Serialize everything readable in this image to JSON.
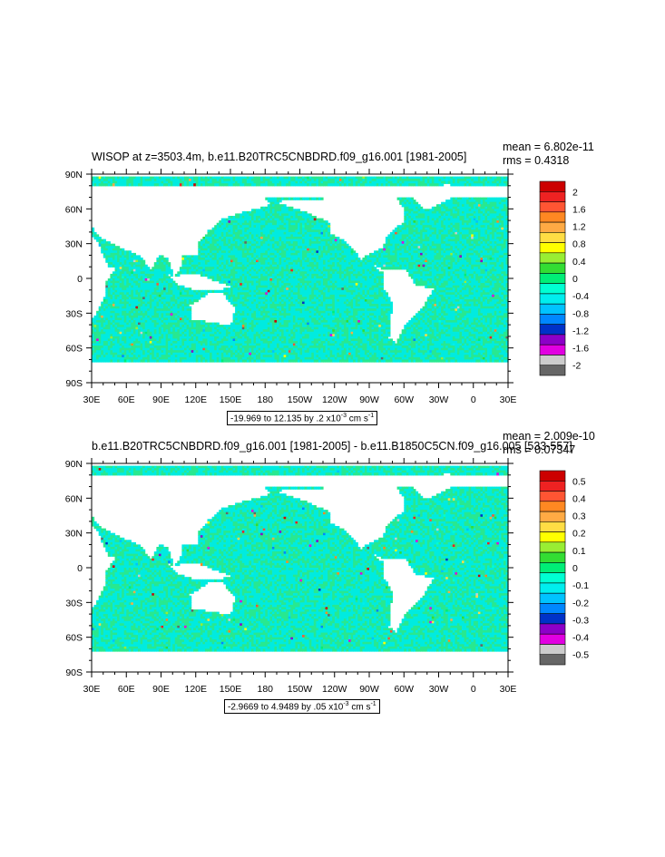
{
  "panels": [
    {
      "title": "WISOP at z=3503.4m, b.e11.B20TRC5CNBDRD.f09_g16.001 [1981-2005]",
      "mean": "mean = 6.802e-11",
      "rms": "rms = 0.4318",
      "range_text": "-19.969 to 12.135 by .2 x10",
      "range_exp": "-3",
      "units": "cm s",
      "units_exp": "-1"
    },
    {
      "title": "b.e11.B20TRC5CNBDRD.f09_g16.001 [1981-2005] - b.e11.B1850C5CN.f09_g16.005 [533-557]",
      "mean": "mean = 2.009e-10",
      "rms": "rms = 0.07347",
      "range_text": "-2.9669 to 4.9489 by .05 x10",
      "range_exp": "-3",
      "units": "cm s",
      "units_exp": "-1"
    }
  ],
  "chart_data": [
    {
      "type": "heatmap",
      "title": "WISOP at z=3503.4m, b.e11.B20TRC5CNBDRD.f09_g16.001 [1981-2005]",
      "x_tick_labels": [
        "30E",
        "60E",
        "90E",
        "120E",
        "150E",
        "180",
        "150W",
        "120W",
        "90W",
        "60W",
        "30W",
        "0",
        "30E"
      ],
      "y_tick_labels": [
        "90N",
        "60N",
        "30N",
        "0",
        "30S",
        "60S",
        "90S"
      ],
      "xlim": [
        30,
        390
      ],
      "ylim": [
        -90,
        90
      ],
      "colorbar_labels": [
        "2",
        "1.6",
        "1.2",
        "0.8",
        "0.4",
        "0",
        "-0.4",
        "-0.8",
        "-1.2",
        "-1.6",
        "-2"
      ],
      "colorbar_min": -2.2,
      "colorbar_max": 2.2
    },
    {
      "type": "heatmap",
      "title": "b.e11.B20TRC5CNBDRD.f09_g16.001 [1981-2005] - b.e11.B1850C5CN.f09_g16.005 [533-557]",
      "x_tick_labels": [
        "30E",
        "60E",
        "90E",
        "120E",
        "150E",
        "180",
        "150W",
        "120W",
        "90W",
        "60W",
        "30W",
        "0",
        "30E"
      ],
      "y_tick_labels": [
        "90N",
        "60N",
        "30N",
        "0",
        "30S",
        "60S",
        "90S"
      ],
      "xlim": [
        30,
        390
      ],
      "ylim": [
        -90,
        90
      ],
      "colorbar_labels": [
        "0.5",
        "0.4",
        "0.3",
        "0.2",
        "0.1",
        "0",
        "-0.1",
        "-0.2",
        "-0.3",
        "-0.4",
        "-0.5"
      ],
      "colorbar_min": -0.55,
      "colorbar_max": 0.55
    }
  ],
  "colors": {
    "palette": [
      "#666666",
      "#cccccc",
      "#e100e1",
      "#8c00c8",
      "#0032c8",
      "#0087ff",
      "#00c3ff",
      "#00eeee",
      "#00ffd2",
      "#00ee77",
      "#33dd33",
      "#99ee33",
      "#ffff00",
      "#ffdd44",
      "#ffaa44",
      "#ff8822",
      "#ff5533",
      "#ee2222",
      "#cc0000"
    ],
    "ocean_main": "#00ebe0",
    "ocean_alt": "#28e890",
    "land": "#ffffff"
  }
}
